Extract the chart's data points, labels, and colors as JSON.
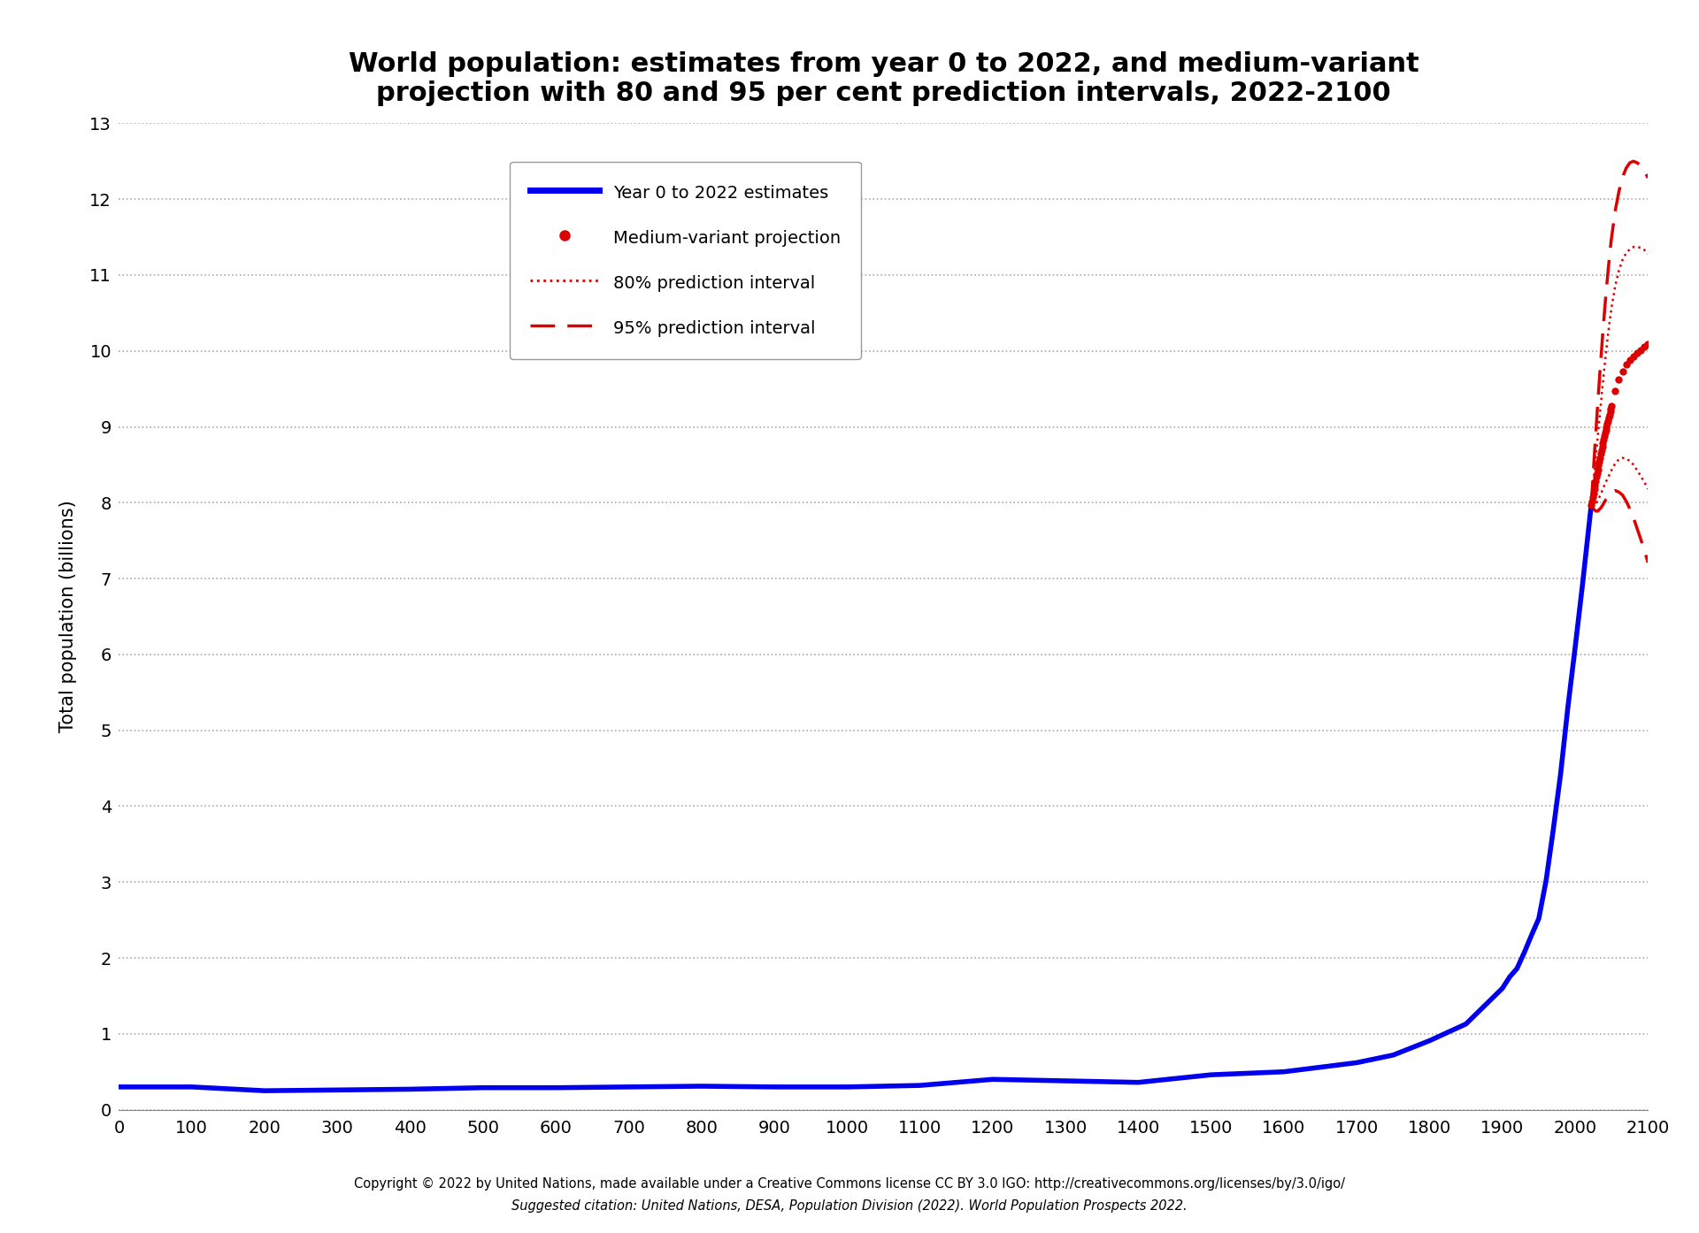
{
  "title_line1": "World population: estimates from year 0 to 2022, and medium-variant",
  "title_line2": "projection with 80 and 95 per cent prediction intervals, 2022-2100",
  "xlabel": "",
  "ylabel": "Total population (billions)",
  "xlim": [
    0,
    2100
  ],
  "ylim": [
    0,
    13
  ],
  "xticks": [
    0,
    100,
    200,
    300,
    400,
    500,
    600,
    700,
    800,
    900,
    1000,
    1100,
    1200,
    1300,
    1400,
    1500,
    1600,
    1700,
    1800,
    1900,
    2000,
    2100
  ],
  "yticks": [
    0,
    1,
    2,
    3,
    4,
    5,
    6,
    7,
    8,
    9,
    10,
    11,
    12,
    13
  ],
  "background_color": "#ffffff",
  "line_color": "#0000ee",
  "projection_color": "#dd0000",
  "title_fontsize": 22,
  "axis_label_fontsize": 15,
  "tick_fontsize": 14,
  "legend_fontsize": 14,
  "footnote1": "Copyright © 2022 by United Nations, made available under a Creative Commons license CC BY 3.0 IGO: http://creativecommons.org/licenses/by/3.0/igo/",
  "footnote2": "Suggested citation: United Nations, DESA, Population Division (2022). World Population Prospects 2022.",
  "hist_years": [
    0,
    100,
    200,
    300,
    400,
    500,
    600,
    700,
    800,
    900,
    1000,
    1100,
    1200,
    1300,
    1400,
    1500,
    1600,
    1700,
    1750,
    1800,
    1850,
    1900,
    1910,
    1920,
    1930,
    1940,
    1950,
    1960,
    1970,
    1980,
    1990,
    2000,
    2010,
    2022
  ],
  "hist_pop": [
    0.3,
    0.3,
    0.25,
    0.26,
    0.27,
    0.29,
    0.29,
    0.3,
    0.31,
    0.3,
    0.3,
    0.32,
    0.4,
    0.38,
    0.36,
    0.46,
    0.5,
    0.62,
    0.72,
    0.91,
    1.13,
    1.6,
    1.75,
    1.86,
    2.07,
    2.3,
    2.52,
    3.02,
    3.7,
    4.43,
    5.31,
    6.1,
    6.92,
    7.97
  ],
  "proj_years": [
    2022,
    2023,
    2024,
    2025,
    2026,
    2027,
    2028,
    2029,
    2030,
    2031,
    2032,
    2033,
    2034,
    2035,
    2036,
    2037,
    2038,
    2039,
    2040,
    2041,
    2042,
    2043,
    2044,
    2045,
    2046,
    2047,
    2048,
    2049,
    2050,
    2055,
    2060,
    2065,
    2070,
    2075,
    2080,
    2085,
    2090,
    2095,
    2100
  ],
  "proj_medium": [
    7.97,
    8.02,
    8.07,
    8.12,
    8.18,
    8.23,
    8.28,
    8.34,
    8.39,
    8.44,
    8.49,
    8.54,
    8.59,
    8.64,
    8.69,
    8.74,
    8.79,
    8.83,
    8.88,
    8.92,
    8.96,
    9.0,
    9.04,
    9.08,
    9.12,
    9.16,
    9.2,
    9.24,
    9.27,
    9.47,
    9.62,
    9.73,
    9.82,
    9.88,
    9.93,
    9.97,
    10.01,
    10.05,
    10.09
  ],
  "proj_80_low": [
    7.97,
    7.97,
    7.97,
    7.97,
    7.97,
    7.98,
    7.99,
    8.0,
    8.01,
    8.03,
    8.05,
    8.07,
    8.09,
    8.11,
    8.13,
    8.16,
    8.18,
    8.2,
    8.23,
    8.25,
    8.27,
    8.29,
    8.31,
    8.33,
    8.35,
    8.37,
    8.39,
    8.41,
    8.43,
    8.52,
    8.57,
    8.59,
    8.58,
    8.55,
    8.5,
    8.43,
    8.35,
    8.27,
    8.18
  ],
  "proj_80_high": [
    7.97,
    8.07,
    8.17,
    8.27,
    8.38,
    8.48,
    8.58,
    8.68,
    8.78,
    8.88,
    8.98,
    9.08,
    9.18,
    9.28,
    9.38,
    9.48,
    9.58,
    9.68,
    9.77,
    9.86,
    9.95,
    10.04,
    10.13,
    10.21,
    10.29,
    10.37,
    10.44,
    10.51,
    10.58,
    10.86,
    11.06,
    11.2,
    11.29,
    11.34,
    11.37,
    11.37,
    11.36,
    11.33,
    11.28
  ],
  "proj_95_low": [
    7.97,
    7.95,
    7.93,
    7.92,
    7.91,
    7.9,
    7.89,
    7.89,
    7.89,
    7.89,
    7.9,
    7.91,
    7.92,
    7.93,
    7.94,
    7.96,
    7.97,
    7.99,
    8.01,
    8.02,
    8.04,
    8.05,
    8.07,
    8.08,
    8.1,
    8.11,
    8.12,
    8.13,
    8.14,
    8.16,
    8.14,
    8.1,
    8.02,
    7.92,
    7.8,
    7.66,
    7.52,
    7.37,
    7.21
  ],
  "proj_95_high": [
    7.97,
    8.12,
    8.27,
    8.43,
    8.58,
    8.73,
    8.88,
    9.02,
    9.17,
    9.31,
    9.45,
    9.59,
    9.73,
    9.86,
    9.99,
    10.12,
    10.25,
    10.37,
    10.49,
    10.61,
    10.72,
    10.83,
    10.94,
    11.04,
    11.14,
    11.24,
    11.33,
    11.42,
    11.5,
    11.85,
    12.1,
    12.29,
    12.41,
    12.48,
    12.5,
    12.48,
    12.44,
    12.37,
    12.28
  ]
}
